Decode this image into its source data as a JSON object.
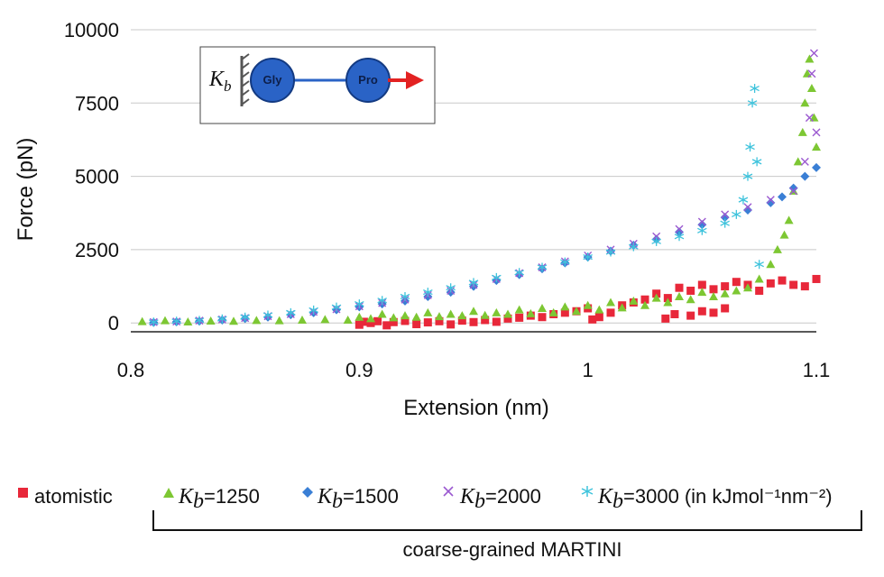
{
  "chart_data": {
    "type": "scatter",
    "xlabel": "Extension (nm)",
    "ylabel": "Force (pN)",
    "xlim": [
      0.8,
      1.1
    ],
    "ylim": [
      -300,
      10000
    ],
    "xticks": [
      "0.8",
      "0.9",
      "1",
      "1.1"
    ],
    "yticks": [
      "0",
      "2500",
      "5000",
      "7500",
      "10000"
    ],
    "grid": "horizontal",
    "legend_position": "bottom",
    "group_label": "coarse-grained MARTINI",
    "units_note": "(in kJmol⁻¹nm⁻²)",
    "inset": {
      "spring_label": "K",
      "spring_sub": "b",
      "node1": "Gly",
      "node2": "Pro"
    },
    "series": [
      {
        "name": "atomistic",
        "marker": "square",
        "color": "#e8283a",
        "points": [
          [
            0.9,
            -60
          ],
          [
            0.902,
            40
          ],
          [
            0.905,
            0
          ],
          [
            0.908,
            60
          ],
          [
            0.912,
            -80
          ],
          [
            0.915,
            30
          ],
          [
            0.92,
            70
          ],
          [
            0.925,
            -40
          ],
          [
            0.93,
            20
          ],
          [
            0.935,
            60
          ],
          [
            0.94,
            -50
          ],
          [
            0.945,
            80
          ],
          [
            0.95,
            30
          ],
          [
            0.955,
            100
          ],
          [
            0.96,
            40
          ],
          [
            0.965,
            150
          ],
          [
            0.97,
            180
          ],
          [
            0.975,
            250
          ],
          [
            0.98,
            200
          ],
          [
            0.985,
            300
          ],
          [
            0.99,
            350
          ],
          [
            0.995,
            400
          ],
          [
            1.0,
            500
          ],
          [
            1.002,
            120
          ],
          [
            1.005,
            200
          ],
          [
            1.01,
            350
          ],
          [
            1.015,
            600
          ],
          [
            1.02,
            700
          ],
          [
            1.025,
            800
          ],
          [
            1.03,
            1000
          ],
          [
            1.035,
            850
          ],
          [
            1.04,
            1200
          ],
          [
            1.045,
            1100
          ],
          [
            1.05,
            1300
          ],
          [
            1.055,
            1150
          ],
          [
            1.06,
            1250
          ],
          [
            1.065,
            1400
          ],
          [
            1.07,
            1300
          ],
          [
            1.075,
            1100
          ],
          [
            1.08,
            1350
          ],
          [
            1.085,
            1450
          ],
          [
            1.09,
            1300
          ],
          [
            1.095,
            1250
          ],
          [
            1.1,
            1500
          ],
          [
            1.034,
            150
          ],
          [
            1.038,
            300
          ],
          [
            1.045,
            250
          ],
          [
            1.05,
            400
          ],
          [
            1.055,
            350
          ],
          [
            1.06,
            500
          ]
        ]
      },
      {
        "name": "=1250",
        "marker": "triangle",
        "color": "#7dc733",
        "points": [
          [
            0.805,
            50
          ],
          [
            0.815,
            80
          ],
          [
            0.825,
            40
          ],
          [
            0.835,
            70
          ],
          [
            0.845,
            60
          ],
          [
            0.855,
            90
          ],
          [
            0.865,
            80
          ],
          [
            0.875,
            100
          ],
          [
            0.885,
            120
          ],
          [
            0.895,
            100
          ],
          [
            0.905,
            150
          ],
          [
            0.915,
            180
          ],
          [
            0.925,
            200
          ],
          [
            0.935,
            220
          ],
          [
            0.945,
            250
          ],
          [
            0.955,
            260
          ],
          [
            0.965,
            300
          ],
          [
            0.975,
            320
          ],
          [
            0.985,
            350
          ],
          [
            0.995,
            400
          ],
          [
            1.005,
            450
          ],
          [
            1.015,
            520
          ],
          [
            1.025,
            600
          ],
          [
            1.035,
            700
          ],
          [
            1.045,
            800
          ],
          [
            1.055,
            900
          ],
          [
            1.06,
            1000
          ],
          [
            1.065,
            1100
          ],
          [
            1.07,
            1200
          ],
          [
            1.075,
            1500
          ],
          [
            1.08,
            2000
          ],
          [
            1.083,
            2500
          ],
          [
            1.086,
            3000
          ],
          [
            1.088,
            3500
          ],
          [
            1.09,
            4500
          ],
          [
            1.092,
            5500
          ],
          [
            1.094,
            6500
          ],
          [
            1.095,
            7500
          ],
          [
            1.096,
            8500
          ],
          [
            1.097,
            9000
          ],
          [
            1.098,
            8000
          ],
          [
            1.099,
            7000
          ],
          [
            1.1,
            6000
          ],
          [
            0.9,
            200
          ],
          [
            0.91,
            300
          ],
          [
            0.92,
            250
          ],
          [
            0.93,
            350
          ],
          [
            0.94,
            300
          ],
          [
            0.95,
            400
          ],
          [
            0.96,
            350
          ],
          [
            0.97,
            450
          ],
          [
            0.98,
            500
          ],
          [
            0.99,
            550
          ],
          [
            1.0,
            600
          ],
          [
            1.01,
            700
          ],
          [
            1.02,
            750
          ],
          [
            1.03,
            850
          ],
          [
            1.04,
            900
          ],
          [
            1.05,
            1050
          ]
        ]
      },
      {
        "name": "=1500",
        "marker": "diamond",
        "color": "#3a7fd5",
        "points": [
          [
            0.81,
            20
          ],
          [
            0.82,
            40
          ],
          [
            0.83,
            60
          ],
          [
            0.84,
            100
          ],
          [
            0.85,
            150
          ],
          [
            0.86,
            200
          ],
          [
            0.87,
            280
          ],
          [
            0.88,
            350
          ],
          [
            0.89,
            450
          ],
          [
            0.9,
            550
          ],
          [
            0.91,
            650
          ],
          [
            0.92,
            750
          ],
          [
            0.93,
            900
          ],
          [
            0.94,
            1050
          ],
          [
            0.95,
            1250
          ],
          [
            0.96,
            1450
          ],
          [
            0.97,
            1650
          ],
          [
            0.98,
            1850
          ],
          [
            0.99,
            2050
          ],
          [
            1.0,
            2250
          ],
          [
            1.01,
            2450
          ],
          [
            1.02,
            2650
          ],
          [
            1.03,
            2850
          ],
          [
            1.04,
            3100
          ],
          [
            1.05,
            3350
          ],
          [
            1.06,
            3600
          ],
          [
            1.07,
            3850
          ],
          [
            1.08,
            4100
          ],
          [
            1.085,
            4300
          ],
          [
            1.09,
            4600
          ],
          [
            1.095,
            5000
          ],
          [
            1.1,
            5300
          ]
        ]
      },
      {
        "name": "=2000",
        "marker": "cross",
        "color": "#9b59d0",
        "points": [
          [
            0.81,
            30
          ],
          [
            0.82,
            50
          ],
          [
            0.83,
            80
          ],
          [
            0.84,
            120
          ],
          [
            0.85,
            170
          ],
          [
            0.86,
            230
          ],
          [
            0.87,
            300
          ],
          [
            0.88,
            380
          ],
          [
            0.89,
            470
          ],
          [
            0.9,
            570
          ],
          [
            0.91,
            680
          ],
          [
            0.92,
            800
          ],
          [
            0.93,
            950
          ],
          [
            0.94,
            1100
          ],
          [
            0.95,
            1300
          ],
          [
            0.96,
            1500
          ],
          [
            0.97,
            1700
          ],
          [
            0.98,
            1900
          ],
          [
            0.99,
            2100
          ],
          [
            1.0,
            2300
          ],
          [
            1.01,
            2500
          ],
          [
            1.02,
            2700
          ],
          [
            1.03,
            2950
          ],
          [
            1.04,
            3200
          ],
          [
            1.05,
            3450
          ],
          [
            1.06,
            3700
          ],
          [
            1.07,
            3950
          ],
          [
            1.08,
            4200
          ],
          [
            1.09,
            4500
          ],
          [
            1.095,
            5500
          ],
          [
            1.097,
            7000
          ],
          [
            1.098,
            8500
          ],
          [
            1.099,
            9200
          ],
          [
            1.1,
            6500
          ]
        ]
      },
      {
        "name": "=3000",
        "marker": "star",
        "color": "#3ec3dc",
        "points": [
          [
            0.81,
            30
          ],
          [
            0.82,
            60
          ],
          [
            0.83,
            90
          ],
          [
            0.84,
            140
          ],
          [
            0.85,
            200
          ],
          [
            0.86,
            270
          ],
          [
            0.87,
            350
          ],
          [
            0.88,
            440
          ],
          [
            0.89,
            540
          ],
          [
            0.9,
            650
          ],
          [
            0.91,
            770
          ],
          [
            0.92,
            900
          ],
          [
            0.93,
            1050
          ],
          [
            0.94,
            1200
          ],
          [
            0.95,
            1380
          ],
          [
            0.96,
            1550
          ],
          [
            0.97,
            1720
          ],
          [
            0.98,
            1900
          ],
          [
            0.99,
            2080
          ],
          [
            1.0,
            2250
          ],
          [
            1.01,
            2420
          ],
          [
            1.02,
            2600
          ],
          [
            1.03,
            2780
          ],
          [
            1.04,
            2950
          ],
          [
            1.05,
            3150
          ],
          [
            1.06,
            3400
          ],
          [
            1.065,
            3700
          ],
          [
            1.068,
            4200
          ],
          [
            1.07,
            5000
          ],
          [
            1.071,
            6000
          ],
          [
            1.072,
            7500
          ],
          [
            1.073,
            8000
          ],
          [
            1.074,
            5500
          ],
          [
            1.075,
            2000
          ]
        ]
      }
    ]
  }
}
